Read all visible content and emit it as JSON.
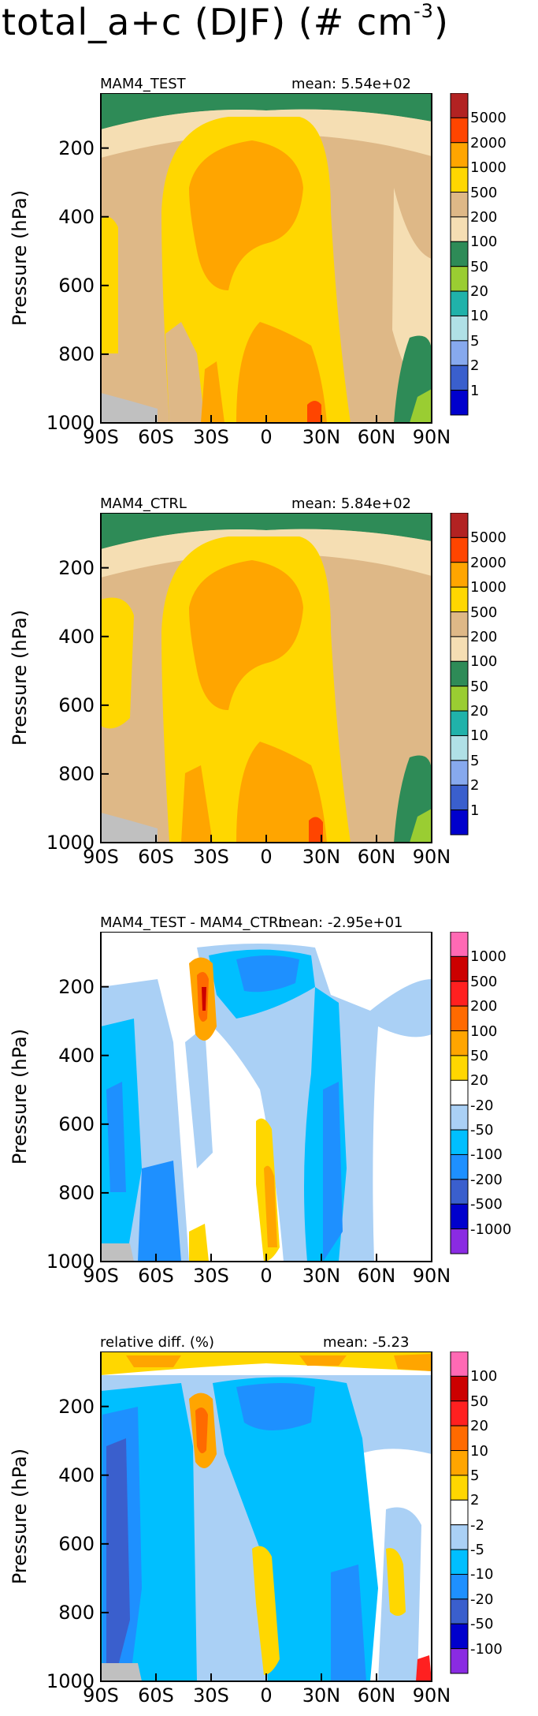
{
  "title": "total_a+c (DJF) (# cm",
  "title_sup": "-3",
  "title_end": ")",
  "y_axis_label": "Pressure (hPa)",
  "y_ticks": [
    "200",
    "400",
    "600",
    "800",
    "1000"
  ],
  "x_ticks": [
    "90S",
    "60S",
    "30S",
    "0",
    "30N",
    "60N",
    "90N"
  ],
  "panels": [
    {
      "name": "MAM4_TEST",
      "mean_text": "mean: 5.54e+02",
      "legend_labels": [
        "5000",
        "2000",
        "1000",
        "500",
        "200",
        "100",
        "50",
        "20",
        "10",
        "5",
        "2",
        "1"
      ],
      "legend_colors": [
        "#b22222",
        "#ff4500",
        "#ffa500",
        "#ffd700",
        "#deb887",
        "#f5deb3",
        "#2e8b57",
        "#9acd32",
        "#20b2aa",
        "#b0e0e6",
        "#87a9ee",
        "#3a5fcd",
        "#0000cd"
      ]
    },
    {
      "name": "MAM4_CTRL",
      "mean_text": "mean: 5.84e+02",
      "legend_labels": [
        "5000",
        "2000",
        "1000",
        "500",
        "200",
        "100",
        "50",
        "20",
        "10",
        "5",
        "2",
        "1"
      ],
      "legend_colors": [
        "#b22222",
        "#ff4500",
        "#ffa500",
        "#ffd700",
        "#deb887",
        "#f5deb3",
        "#2e8b57",
        "#9acd32",
        "#20b2aa",
        "#b0e0e6",
        "#87a9ee",
        "#3a5fcd",
        "#0000cd"
      ]
    },
    {
      "name": "MAM4_TEST - MAM4_CTRL",
      "mean_text": "mean: -2.95e+01",
      "legend_labels": [
        "1000",
        "500",
        "200",
        "100",
        "50",
        "20",
        "-20",
        "-50",
        "-100",
        "-200",
        "-500",
        "-1000"
      ],
      "legend_colors": [
        "#ff69b4",
        "#cc0000",
        "#ff2020",
        "#ff6a00",
        "#ffa500",
        "#ffd700",
        "#ffffff",
        "#aad0f5",
        "#00bfff",
        "#1e90ff",
        "#3a5fcd",
        "#0000cd",
        "#8a2be2"
      ]
    },
    {
      "name": "relative diff. (%)",
      "mean_text": "mean: -5.23",
      "legend_labels": [
        "100",
        "50",
        "20",
        "10",
        "5",
        "2",
        "-2",
        "-5",
        "-10",
        "-20",
        "-50",
        "-100"
      ],
      "legend_colors": [
        "#ff69b4",
        "#cc0000",
        "#ff2020",
        "#ff6a00",
        "#ffa500",
        "#ffd700",
        "#ffffff",
        "#aad0f5",
        "#00bfff",
        "#1e90ff",
        "#3a5fcd",
        "#0000cd",
        "#8a2be2"
      ]
    }
  ],
  "chart_data": [
    {
      "type": "heatmap",
      "title": "MAM4_TEST",
      "annotation": "mean: 5.54e+02",
      "ylabel": "Pressure (hPa)",
      "x_ticks": [
        "90S",
        "60S",
        "30S",
        "0",
        "30N",
        "60N",
        "90N"
      ],
      "y_ticks": [
        200,
        400,
        600,
        800,
        1000
      ],
      "y_range": [
        1000,
        40
      ],
      "levels": [
        1,
        2,
        5,
        10,
        20,
        50,
        100,
        200,
        500,
        1000,
        2000,
        5000
      ]
    },
    {
      "type": "heatmap",
      "title": "MAM4_CTRL",
      "annotation": "mean: 5.84e+02",
      "ylabel": "Pressure (hPa)",
      "x_ticks": [
        "90S",
        "60S",
        "30S",
        "0",
        "30N",
        "60N",
        "90N"
      ],
      "y_ticks": [
        200,
        400,
        600,
        800,
        1000
      ],
      "y_range": [
        1000,
        40
      ],
      "levels": [
        1,
        2,
        5,
        10,
        20,
        50,
        100,
        200,
        500,
        1000,
        2000,
        5000
      ]
    },
    {
      "type": "heatmap",
      "title": "MAM4_TEST - MAM4_CTRL",
      "annotation": "mean: -2.95e+01",
      "ylabel": "Pressure (hPa)",
      "x_ticks": [
        "90S",
        "60S",
        "30S",
        "0",
        "30N",
        "60N",
        "90N"
      ],
      "y_ticks": [
        200,
        400,
        600,
        800,
        1000
      ],
      "y_range": [
        1000,
        40
      ],
      "levels": [
        -1000,
        -500,
        -200,
        -100,
        -50,
        -20,
        20,
        50,
        100,
        200,
        500,
        1000
      ]
    },
    {
      "type": "heatmap",
      "title": "relative diff. (%)",
      "annotation": "mean: -5.23",
      "ylabel": "Pressure (hPa)",
      "x_ticks": [
        "90S",
        "60S",
        "30S",
        "0",
        "30N",
        "60N",
        "90N"
      ],
      "y_ticks": [
        200,
        400,
        600,
        800,
        1000
      ],
      "y_range": [
        1000,
        40
      ],
      "levels": [
        -100,
        -50,
        -20,
        -10,
        -5,
        -2,
        2,
        5,
        10,
        20,
        50,
        100
      ]
    }
  ]
}
